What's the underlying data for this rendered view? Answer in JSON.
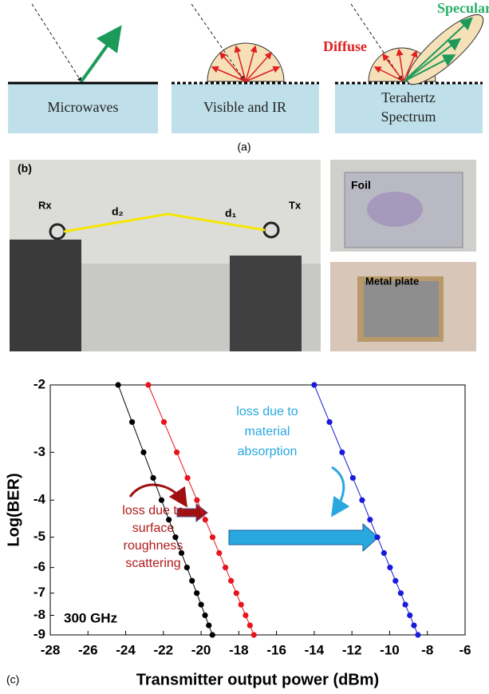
{
  "panel_a": {
    "label": "(a)",
    "boxes": [
      "Microwaves",
      "Visible and IR",
      "Terahertz",
      "Spectrum"
    ],
    "diffuse": "Diffuse",
    "specular": "Specular"
  },
  "panel_b": {
    "label": "(b)",
    "rx": "Rx",
    "tx": "Tx",
    "d2": "d₂",
    "d1": "d₁",
    "foil": "Foil",
    "metal": "Metal plate"
  },
  "chart_data": {
    "type": "scatter",
    "label": "(c)",
    "x_label": "Transmitter output power (dBm)",
    "y_label": "Log(BER)",
    "yscale": "neglog",
    "xlim": [
      -28,
      -6
    ],
    "xticks": [
      -28,
      -26,
      -24,
      -22,
      -20,
      -18,
      -16,
      -14,
      -12,
      -10,
      -8,
      -6
    ],
    "ylim": [
      -2,
      -9
    ],
    "yticks": [
      -2,
      -3,
      -4,
      -5,
      -6,
      -7,
      -8,
      -9
    ],
    "annotations": {
      "roughness": [
        "loss due to",
        "surface",
        "roughness",
        "scattering"
      ],
      "absorption": [
        "loss due to",
        "material",
        "absorption"
      ],
      "frequency": "300 GHz"
    },
    "series": [
      {
        "color": "#000000",
        "x": [
          -24.4,
          -23.66,
          -23.05,
          -22.54,
          -22.1,
          -21.71,
          -21.36,
          -21.04,
          -20.75,
          -20.48,
          -20.23,
          -20.0,
          -19.79,
          -19.59,
          -19.4
        ],
        "values": [
          -2,
          -2.5,
          -3,
          -3.5,
          -4,
          -4.5,
          -5,
          -5.5,
          -6,
          -6.5,
          -7,
          -7.5,
          -8,
          -8.5,
          -9
        ]
      },
      {
        "color": "#e8141b",
        "x": [
          -22.8,
          -21.97,
          -21.29,
          -20.72,
          -20.22,
          -19.78,
          -19.39,
          -19.04,
          -18.71,
          -18.41,
          -18.13,
          -17.88,
          -17.64,
          -17.41,
          -17.2
        ],
        "values": [
          -2,
          -2.5,
          -3,
          -3.5,
          -4,
          -4.5,
          -5,
          -5.5,
          -6,
          -6.5,
          -7,
          -7.5,
          -8,
          -8.5,
          -9
        ]
      },
      {
        "color": "#1a1adb",
        "x": [
          -14,
          -13.19,
          -12.52,
          -11.95,
          -11.46,
          -11.04,
          -10.65,
          -10.3,
          -9.98,
          -9.69,
          -9.41,
          -9.17,
          -8.93,
          -8.71,
          -8.5
        ],
        "values": [
          -2,
          -2.5,
          -3,
          -3.5,
          -4,
          -4.5,
          -5,
          -5.5,
          -6,
          -6.5,
          -7,
          -7.5,
          -8,
          -8.5,
          -9
        ]
      }
    ]
  }
}
